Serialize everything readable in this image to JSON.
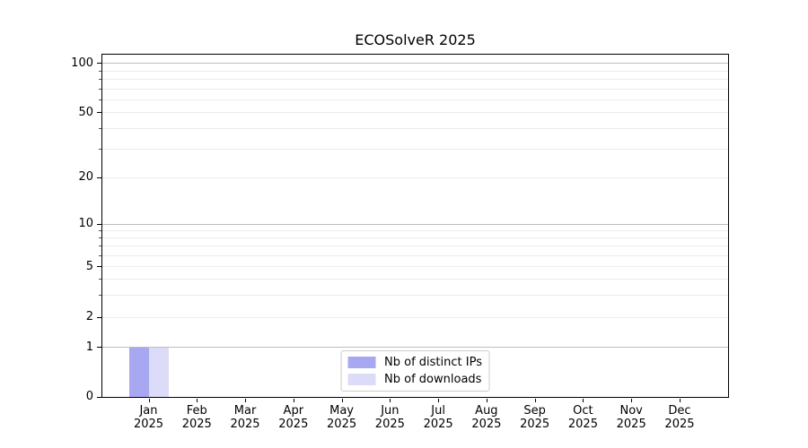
{
  "chart_data": {
    "type": "bar",
    "title": "ECOSolveR 2025",
    "categories": [
      "Jan",
      "Feb",
      "Mar",
      "Apr",
      "May",
      "Jun",
      "Jul",
      "Aug",
      "Sep",
      "Oct",
      "Nov",
      "Dec"
    ],
    "category_year": "2025",
    "series": [
      {
        "name": "Nb of distinct IPs",
        "color": "#a8a8f2",
        "values": [
          1,
          0,
          0,
          0,
          0,
          0,
          0,
          0,
          0,
          0,
          0,
          0
        ]
      },
      {
        "name": "Nb of downloads",
        "color": "#dcdcf8",
        "values": [
          1,
          0,
          0,
          0,
          0,
          0,
          0,
          0,
          0,
          0,
          0,
          0
        ]
      }
    ],
    "xlabel": "",
    "ylabel": "",
    "yaxis": {
      "scale": "symlog",
      "ylim": [
        0,
        115
      ],
      "ticks": [
        0,
        1,
        2,
        5,
        10,
        20,
        50,
        100
      ],
      "minor_gridlines": [
        3,
        4,
        6,
        7,
        8,
        9,
        30,
        40,
        60,
        70,
        80,
        90
      ],
      "major_grid_values": [
        1,
        10,
        100
      ],
      "tick_fractions": {
        "0": 0,
        "1": 0.145,
        "2": 0.232,
        "5": 0.38,
        "10": 0.505,
        "20": 0.641,
        "50": 0.831,
        "100": 0.974
      }
    },
    "grid": true,
    "legend": {
      "position": "lower center",
      "entries": [
        "Nb of distinct IPs",
        "Nb of downloads"
      ]
    }
  },
  "colors": {
    "bar_distinct_ips": "#a8a8f2",
    "bar_downloads": "#dcdcf8",
    "major_grid": "#bdbdbd",
    "minor_grid": "#ebebeb",
    "spine": "#000000",
    "text": "#000000",
    "legend_border": "#cccccc",
    "background": "#ffffff"
  }
}
